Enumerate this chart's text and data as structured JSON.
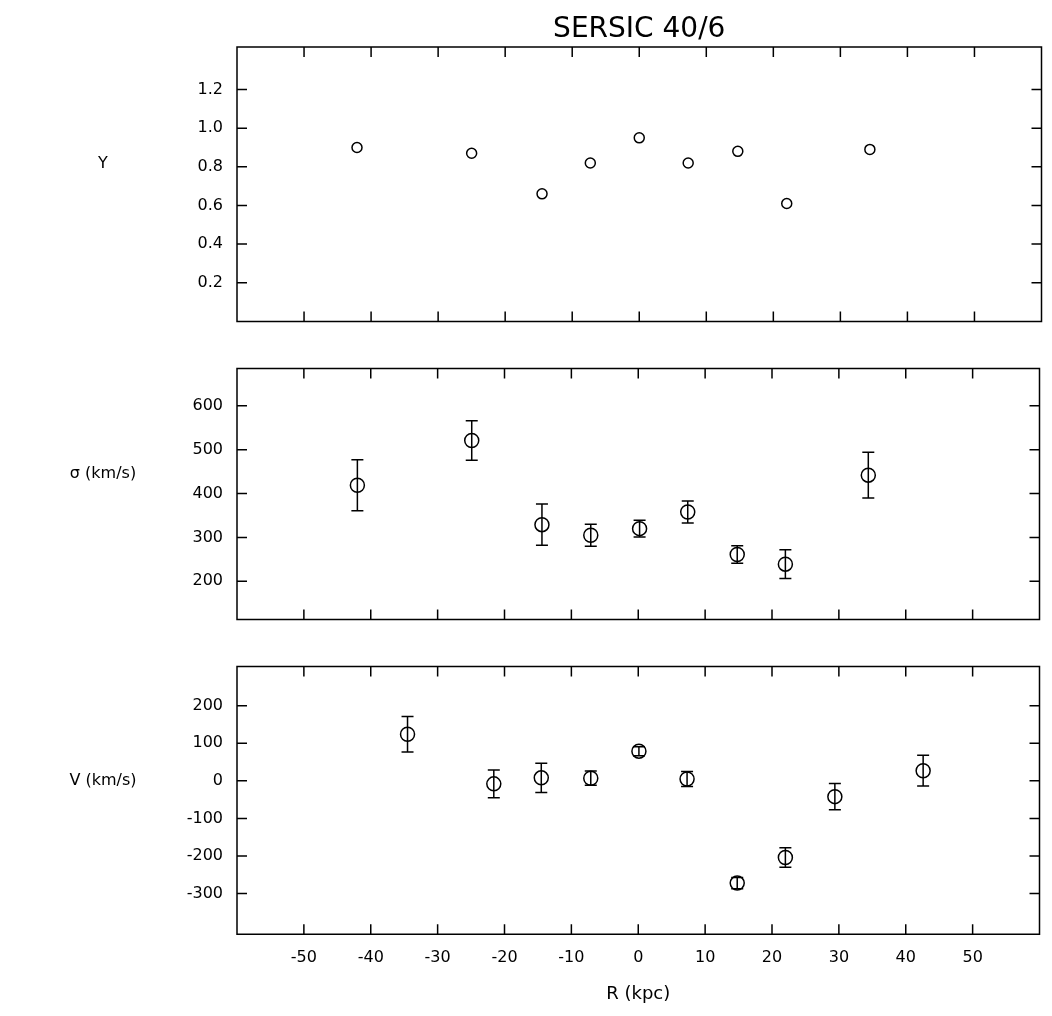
{
  "chart_data": [
    {
      "type": "scatter",
      "title": "SERSIC 40/6",
      "ylabel": "Y",
      "color": "#000000",
      "marker": "circle",
      "grid": false,
      "tick_labels": "y",
      "x": [
        -42.1,
        -25.0,
        -14.5,
        -7.3,
        0,
        7.3,
        14.7,
        22.0,
        34.4
      ],
      "values": [
        0.9,
        0.87,
        0.66,
        0.82,
        0.95,
        0.82,
        0.88,
        0.61,
        0.89
      ],
      "xlim": [
        -60,
        60
      ],
      "xticks": [
        -50,
        -40,
        -30,
        -20,
        -10,
        0,
        10,
        20,
        30,
        40,
        50
      ],
      "ylim": [
        0,
        1.42
      ],
      "yticks": [
        0.2,
        0.4,
        0.6,
        0.8,
        {
          "value": 1,
          "label": "1.0"
        },
        1.2
      ]
    },
    {
      "type": "scatter",
      "ylabel": "σ (km/s)",
      "color": "#000000",
      "marker": "circle",
      "grid": false,
      "tick_labels": "y",
      "x": [
        -42.0,
        -24.9,
        -14.4,
        -7.1,
        0.2,
        7.4,
        14.8,
        22.0,
        34.4
      ],
      "values": [
        419,
        521,
        329,
        305,
        320,
        358,
        261,
        239,
        442
      ],
      "errors": [
        58,
        45,
        47,
        25,
        19,
        25,
        20,
        33,
        52
      ],
      "xlim": [
        -60,
        60
      ],
      "xticks": [
        -50,
        -40,
        -30,
        -20,
        -10,
        0,
        10,
        20,
        30,
        40,
        50
      ],
      "ylim": [
        113,
        685
      ],
      "yticks": [
        200,
        300,
        400,
        500,
        600
      ]
    },
    {
      "type": "scatter",
      "ylabel": "V (km/s)",
      "xlabel": "R (kpc)",
      "color": "#000000",
      "marker": "circle",
      "grid": false,
      "x": [
        -34.5,
        -21.6,
        -14.5,
        -7.1,
        0.1,
        7.3,
        14.8,
        22.0,
        29.4,
        42.6
      ],
      "values": [
        124,
        -8,
        8,
        7,
        79,
        5,
        -272,
        -204,
        -42,
        27
      ],
      "errors": [
        47,
        37,
        39,
        19,
        12,
        20,
        15,
        26,
        35,
        41
      ],
      "xlim": [
        -60,
        60
      ],
      "xticks": [
        -50,
        -40,
        -30,
        -20,
        -10,
        0,
        10,
        20,
        30,
        40,
        50
      ],
      "ylim": [
        -408,
        304
      ],
      "yticks": [
        -300,
        -200,
        -100,
        0,
        100,
        200
      ]
    }
  ]
}
